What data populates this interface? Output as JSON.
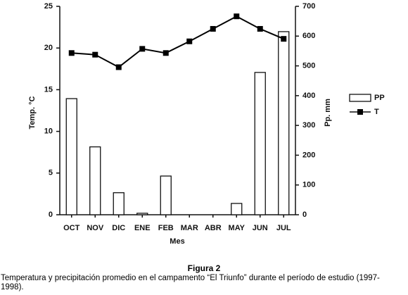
{
  "chart_data": {
    "type": "bar",
    "categories": [
      "OCT",
      "NOV",
      "DIC",
      "ENE",
      "FEB",
      "MAR",
      "ABR",
      "MAY",
      "JUN",
      "JUL"
    ],
    "series": [
      {
        "name": "PP",
        "color": "#ffffff",
        "axis": "y2",
        "values": [
          390,
          228,
          74,
          5,
          130,
          0,
          0,
          38,
          478,
          615
        ]
      },
      {
        "name": "T",
        "color": "#000000",
        "type": "line",
        "values": [
          19.4,
          19.2,
          17.7,
          19.9,
          19.4,
          20.8,
          22.3,
          23.8,
          22.3,
          21.1
        ]
      }
    ],
    "ylabel": "Temp. °C",
    "y2label": "Pp. mm",
    "xlabel": "Mes",
    "ylim": [
      0,
      25
    ],
    "yticks": [
      0,
      5,
      10,
      15,
      20,
      25
    ],
    "y2lim": [
      0,
      700
    ],
    "y2ticks": [
      0,
      100,
      200,
      300,
      400,
      500,
      600,
      700
    ],
    "legend": "right",
    "grid": false
  },
  "caption": {
    "title": "Figura 2",
    "text": "Temperatura y precipitación promedio en el campamento “El Triunfo” durante el período de estudio (1997-1998)."
  }
}
